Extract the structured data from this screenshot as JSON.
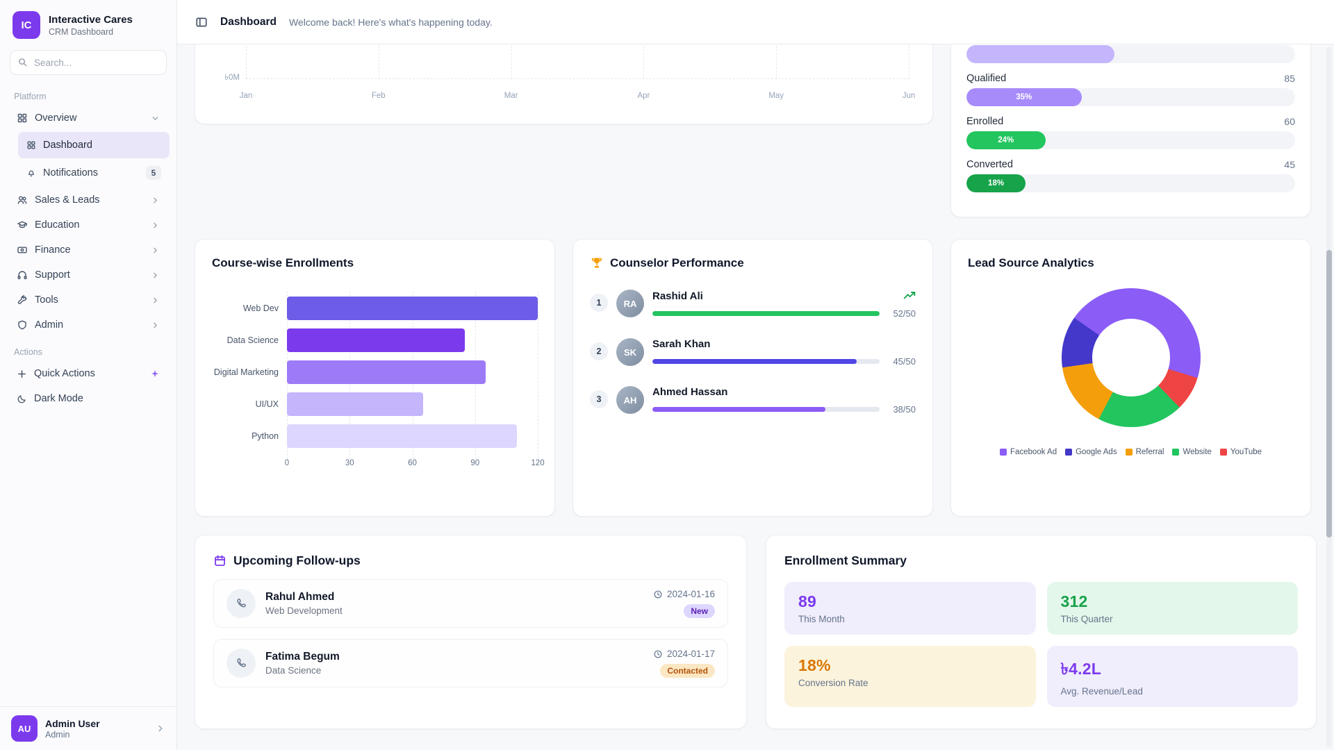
{
  "app": {
    "logo": "IC",
    "name": "Interactive Cares",
    "tagline": "CRM Dashboard"
  },
  "sidebar": {
    "search_placeholder": "Search...",
    "sections": {
      "platform": "Platform",
      "actions": "Actions"
    },
    "overview": {
      "label": "Overview"
    },
    "sub_items": [
      {
        "label": "Dashboard"
      },
      {
        "label": "Notifications",
        "badge": "5"
      }
    ],
    "groups": [
      {
        "label": "Sales & Leads"
      },
      {
        "label": "Education"
      },
      {
        "label": "Finance"
      },
      {
        "label": "Support"
      },
      {
        "label": "Tools"
      },
      {
        "label": "Admin"
      }
    ],
    "quick_actions_label": "Quick Actions",
    "dark_mode_label": "Dark Mode",
    "user": {
      "initials": "AU",
      "name": "Admin User",
      "role": "Admin"
    }
  },
  "header": {
    "title": "Dashboard",
    "subtitle": "Welcome back! Here's what's happening today."
  },
  "chart_data": [
    {
      "id": "revenue_trend",
      "type": "line",
      "note": "chart body scrolled out of view; only x-axis, zero gridline and one y tick visible",
      "x_ticks": [
        "Jan",
        "Feb",
        "Mar",
        "Apr",
        "May",
        "Jun"
      ],
      "visible_y_tick": "৳0M",
      "grid": "dashed"
    },
    {
      "id": "course_enrollments",
      "type": "bar",
      "orientation": "horizontal",
      "title": "Course-wise Enrollments",
      "categories": [
        "Web Dev",
        "Data Science",
        "Digital Marketing",
        "UI/UX",
        "Python"
      ],
      "values": [
        120,
        85,
        95,
        65,
        110
      ],
      "colors": [
        "#6c5ce7",
        "#7c3aed",
        "#9d7bf8",
        "#c4b5fd",
        "#ddd6fe"
      ],
      "x_ticks": [
        0,
        30,
        60,
        90,
        120
      ],
      "xlim": [
        0,
        120
      ],
      "grid": "dashed"
    },
    {
      "id": "lead_sources",
      "type": "pie",
      "title": "Lead Source Analytics",
      "donut": true,
      "start_angle_deg": -55,
      "slices": [
        {
          "label": "Facebook Ad",
          "value": 45,
          "color": "#8b5cf6"
        },
        {
          "label": "YouTube",
          "value": 8,
          "color": "#ef4444"
        },
        {
          "label": "Website",
          "value": 20,
          "color": "#22c55e"
        },
        {
          "label": "Referral",
          "value": 15,
          "color": "#f59e0b"
        },
        {
          "label": "Google Ads",
          "value": 12,
          "color": "#4338ca"
        }
      ],
      "legend": [
        {
          "label": "Facebook Ad",
          "color": "#8b5cf6"
        },
        {
          "label": "Google Ads",
          "color": "#4338ca"
        },
        {
          "label": "Referral",
          "color": "#f59e0b"
        },
        {
          "label": "Website",
          "color": "#22c55e"
        },
        {
          "label": "YouTube",
          "color": "#ef4444"
        }
      ]
    },
    {
      "id": "lead_funnel",
      "type": "bar",
      "subtype": "funnel",
      "note": "card header scrolled out of view; one partially visible bar above Qualified",
      "partial_top_bar": {
        "pct": 45,
        "color": "#c4b5fd"
      },
      "stages": [
        {
          "label": "Qualified",
          "count": "85",
          "pct": 35,
          "pct_label": "35%",
          "color": "#a78bfa"
        },
        {
          "label": "Enrolled",
          "count": "60",
          "pct": 24,
          "pct_label": "24%",
          "color": "#22c55e"
        },
        {
          "label": "Converted",
          "count": "45",
          "pct": 18,
          "pct_label": "18%",
          "color": "#16a34a"
        }
      ]
    }
  ],
  "counselors": {
    "title": "Counselor Performance",
    "items": [
      {
        "rank": "1",
        "name": "Rashid Ali",
        "score_label": "52/50",
        "value": 52,
        "target": 50,
        "color": "#22c55e",
        "trending_up": true
      },
      {
        "rank": "2",
        "name": "Sarah Khan",
        "score_label": "45/50",
        "value": 45,
        "target": 50,
        "color": "#4f46e5",
        "trending_up": false
      },
      {
        "rank": "3",
        "name": "Ahmed Hassan",
        "score_label": "38/50",
        "value": 38,
        "target": 50,
        "color": "#8b5cf6",
        "trending_up": false
      }
    ]
  },
  "followups": {
    "title": "Upcoming Follow-ups",
    "items": [
      {
        "name": "Rahul Ahmed",
        "course": "Web Development",
        "date": "2024-01-16",
        "status": "New",
        "status_bg": "#ddd6fe",
        "status_color": "#5b21b6"
      },
      {
        "name": "Fatima Begum",
        "course": "Data Science",
        "date": "2024-01-17",
        "status": "Contacted",
        "status_bg": "#fbe7c3",
        "status_color": "#b45309"
      }
    ]
  },
  "summary": {
    "title": "Enrollment Summary",
    "tiles": [
      {
        "value": "89",
        "label": "This Month",
        "bg": "#f0edfc",
        "color": "#7c3aed"
      },
      {
        "value": "312",
        "label": "This Quarter",
        "bg": "#e4f7eb",
        "color": "#16a34a"
      },
      {
        "value": "18%",
        "label": "Conversion Rate",
        "bg": "#fcf3dc",
        "color": "#d97706"
      },
      {
        "value": "৳4.2L",
        "label": "Avg. Revenue/Lead",
        "bg": "#f0edfc",
        "color": "#7c3aed"
      }
    ]
  }
}
